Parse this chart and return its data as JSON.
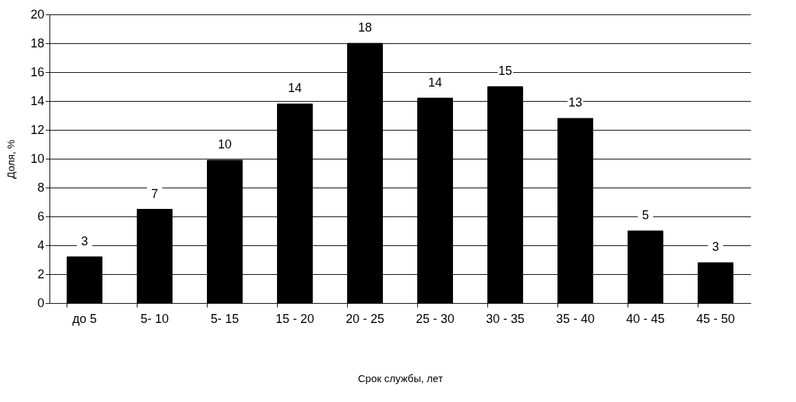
{
  "chart_data": {
    "type": "bar",
    "xlabel": "Срок службы, лет",
    "ylabel": "Доля, %",
    "categories": [
      "до 5",
      "5- 10",
      "5- 15",
      "15 - 20",
      "20 - 25",
      "25 - 30",
      "30 - 35",
      "35 - 40",
      "40 - 45",
      "45 - 50"
    ],
    "values": [
      3.2,
      6.5,
      9.9,
      13.8,
      18.0,
      14.2,
      15.0,
      12.8,
      5.0,
      2.8
    ],
    "value_labels": [
      "3",
      "7",
      "10",
      "14",
      "18",
      "14",
      "15",
      "13",
      "5",
      "3"
    ],
    "color": "#000000",
    "ylim": [
      0,
      20
    ],
    "yticks": [
      0,
      2,
      4,
      6,
      8,
      10,
      12,
      14,
      16,
      18,
      20
    ],
    "grid": "y"
  }
}
